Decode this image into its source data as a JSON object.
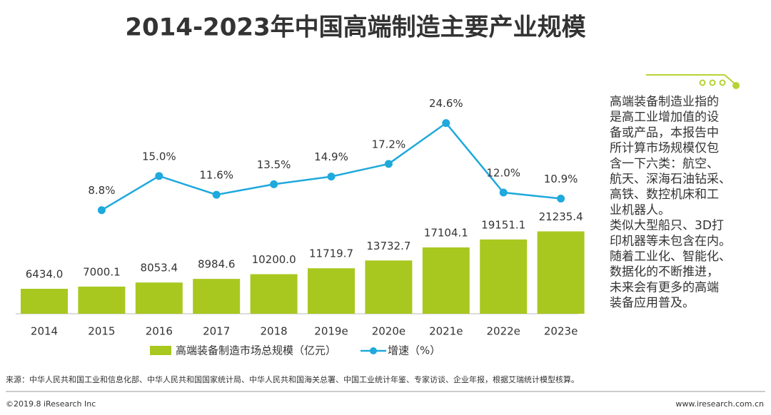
{
  "chart_data": {
    "type": "bar_line",
    "title": "2014-2023年中国高端制造主要产业规模",
    "categories": [
      "2014",
      "2015",
      "2016",
      "2017",
      "2018",
      "2019e",
      "2020e",
      "2021e",
      "2022e",
      "2023e"
    ],
    "series": [
      {
        "name": "高端装备制造市场总规模（亿元）",
        "type": "bar",
        "color": "#a8c820",
        "values": [
          6434.0,
          7000.1,
          8053.4,
          8984.6,
          10200.0,
          11719.7,
          13732.7,
          17104.1,
          19151.1,
          21235.4
        ],
        "value_labels": [
          "6434.0",
          "7000.1",
          "8053.4",
          "8984.6",
          "10200.0",
          "11719.7",
          "13732.7",
          "17104.1",
          "19151.1",
          "21235.4"
        ]
      },
      {
        "name": "增速（%）",
        "type": "line",
        "axis": "y2",
        "color": "#1fa9dc",
        "values": [
          null,
          8.8,
          15.0,
          11.6,
          13.5,
          14.9,
          17.2,
          24.6,
          12.0,
          10.9
        ],
        "value_labels": [
          null,
          "8.8%",
          "15.0%",
          "11.6%",
          "13.5%",
          "14.9%",
          "17.2%",
          "24.6%",
          "12.0%",
          "10.9%"
        ]
      }
    ],
    "ylim": [
      0,
      62500
    ],
    "y2lim": [
      -10,
      34
    ],
    "legend": "bottom"
  },
  "side_note": [
    "高端装备制造业指的",
    "是高工业增加值的设",
    "备或产品，本报告中",
    "所计算市场规模仅包",
    "含一下六类：航空、",
    "航天、深海石油钻采、",
    "高铁、数控机床和工",
    "业机器人。",
    "类似大型船只、3D打",
    "印机器等未包含在内。",
    "随着工业化、智能化、",
    "数据化的不断推进，",
    "未来会有更多的高端",
    "装备应用普及。"
  ],
  "footer": {
    "source": "来源：中华人民共和国工业和信息化部、中华人民共和国国家统计局、中华人民共和国海关总署、中国工业统计年鉴、专家访谈、企业年报，根据艾瑞统计模型核算。",
    "copyright": "©2019.8 iResearch Inc",
    "website": "www.iresearch.com.cn"
  }
}
